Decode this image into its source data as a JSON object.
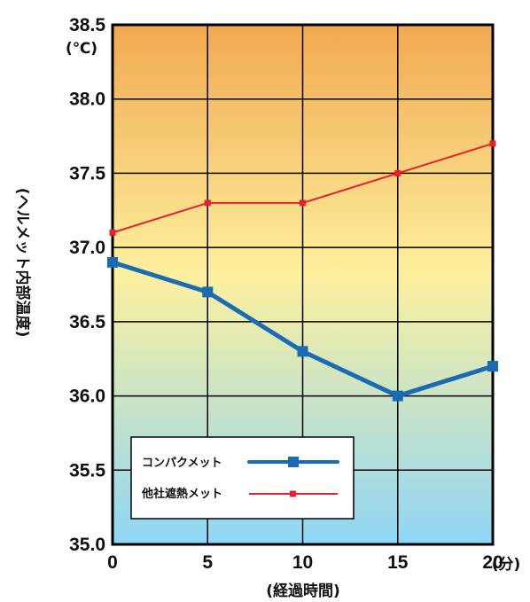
{
  "chart_data": {
    "type": "line",
    "ylabel": "(ヘルメット内部温度)",
    "xlabel": "(経過時間)",
    "y_unit": "(℃)",
    "x_unit": "(分)",
    "x": [
      0,
      5,
      10,
      15,
      20
    ],
    "x_tick_labels": [
      "0",
      "5",
      "10",
      "15",
      "20"
    ],
    "y_tick_labels": [
      "35.0",
      "35.5",
      "36.0",
      "36.5",
      "37.0",
      "37.5",
      "38.0",
      "38.5"
    ],
    "ylim": [
      35.0,
      38.5
    ],
    "xlim": [
      0,
      20
    ],
    "grid": true,
    "legend_position": "bottom-left",
    "background_gradient": [
      "#f2a950",
      "#fdf09e",
      "#8fd6f6"
    ],
    "series": [
      {
        "name": "コンパクメット",
        "values": [
          36.9,
          36.7,
          36.3,
          36.0,
          36.2
        ],
        "color": "#1a6bb5",
        "marker": "square"
      },
      {
        "name": "他社遮熱メット",
        "values": [
          37.1,
          37.3,
          37.3,
          37.5,
          37.7
        ],
        "color": "#e8202a",
        "marker": "square"
      }
    ]
  }
}
